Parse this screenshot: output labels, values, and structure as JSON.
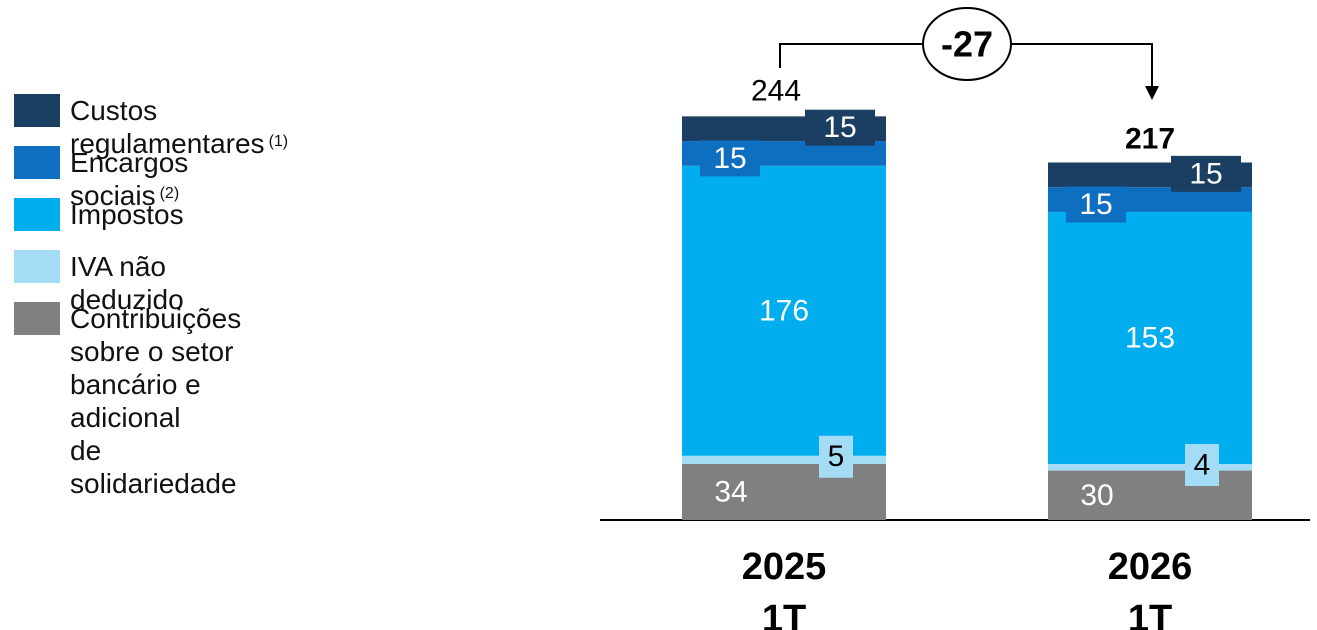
{
  "colors": {
    "custos_regulamentares": "#1b3f63",
    "encargos_sociais": "#0e6fc1",
    "impostos": "#00adee",
    "iva": "#a4dcf5",
    "contribuicoes": "#808080"
  },
  "legend": [
    {
      "label": "Custos regulamentares",
      "sup": "(1)",
      "color_key": "custos_regulamentares"
    },
    {
      "label": "Encargos sociais",
      "sup": "(2)",
      "color_key": "encargos_sociais"
    },
    {
      "label": "Impostos",
      "sup": "",
      "color_key": "impostos"
    },
    {
      "label": "IVA não deduzido",
      "sup": "",
      "color_key": "iva"
    },
    {
      "label": "Contribuições sobre o setor\nbancário e adicional\nde solidariedade",
      "sup": "",
      "color_key": "contribuicoes"
    }
  ],
  "chart_data": {
    "type": "bar",
    "stacked": true,
    "categories": [
      [
        "2025",
        "1T"
      ],
      [
        "2026",
        "1T"
      ]
    ],
    "totals": [
      244,
      217
    ],
    "series": [
      {
        "name": "Contribuições sobre o setor bancário e adicional de solidariedade",
        "color_key": "contribuicoes",
        "values": [
          34,
          30
        ]
      },
      {
        "name": "IVA não deduzido",
        "color_key": "iva",
        "values": [
          5,
          4
        ]
      },
      {
        "name": "Impostos",
        "color_key": "impostos",
        "values": [
          176,
          153
        ]
      },
      {
        "name": "Encargos sociais",
        "color_key": "encargos_sociais",
        "values": [
          15,
          15
        ]
      },
      {
        "name": "Custos regulamentares",
        "color_key": "custos_regulamentares",
        "values": [
          15,
          15
        ]
      }
    ],
    "change_label": "-27",
    "ylim": [
      0,
      244
    ]
  }
}
